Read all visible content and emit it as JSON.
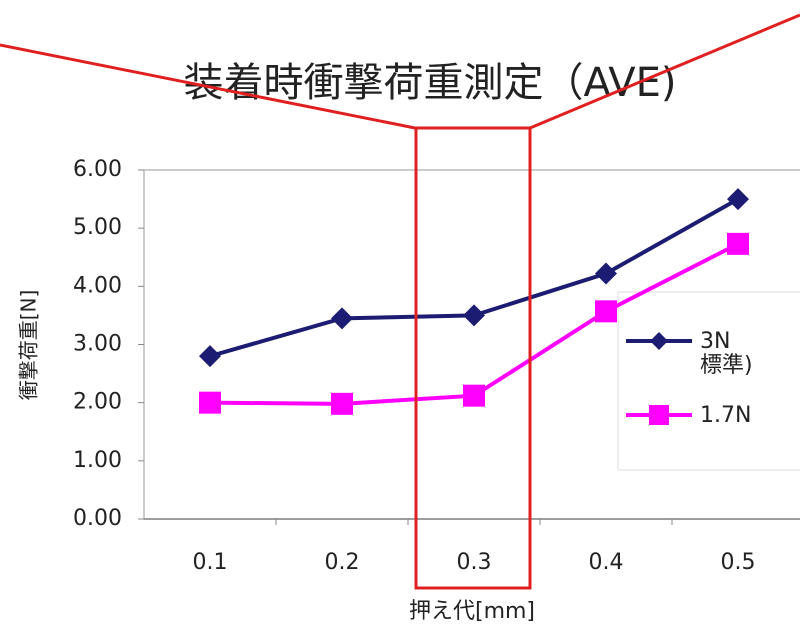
{
  "chart_data": {
    "type": "line",
    "title": "装着時衝撃荷重測定（AVE)",
    "y_label": "衝撃荷重[N]",
    "x_label": "押え代[mm]",
    "categories": [
      "0.1",
      "0.2",
      "0.3",
      "0.4",
      "0.5"
    ],
    "series": [
      {
        "name": "3N\n標準)",
        "color": "#1c1c72",
        "marker": "diamond",
        "values": [
          2.8,
          3.45,
          3.5,
          4.22,
          5.5
        ]
      },
      {
        "name": "1.7N",
        "color": "#ff00ff",
        "marker": "square",
        "values": [
          2.0,
          1.98,
          2.12,
          3.57,
          4.73
        ]
      }
    ],
    "ylim": [
      0,
      6
    ],
    "yticks": [
      {
        "value": 0,
        "label": "0.00"
      },
      {
        "value": 1,
        "label": "1.00"
      },
      {
        "value": 2,
        "label": "2.00"
      },
      {
        "value": 3,
        "label": "3.00"
      },
      {
        "value": 4,
        "label": "4.00"
      },
      {
        "value": 5,
        "label": "5.00"
      },
      {
        "value": 6,
        "label": "6.00"
      }
    ],
    "grid": false
  }
}
